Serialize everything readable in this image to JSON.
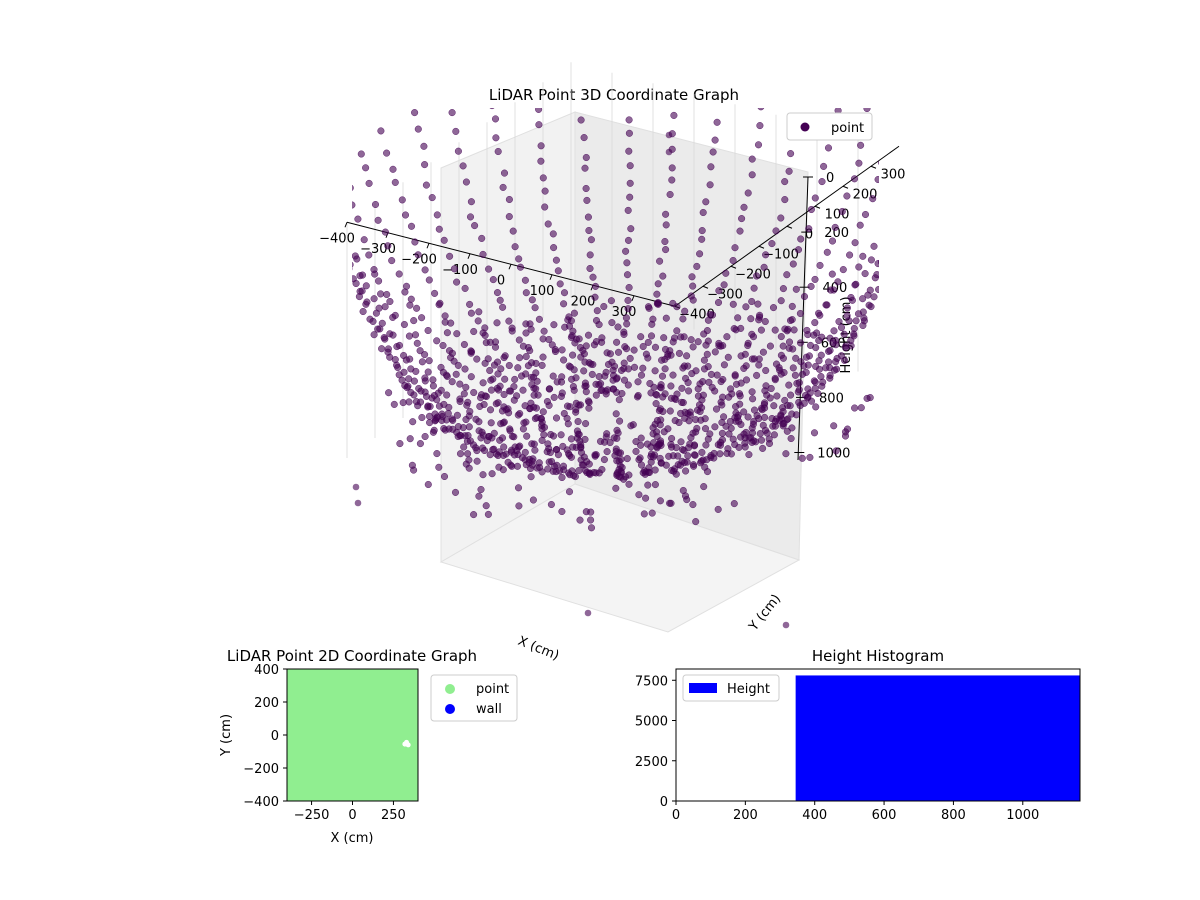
{
  "figure": {
    "background": "#ffffff"
  },
  "chart_data": [
    {
      "id": "lidar3d",
      "type": "scatter",
      "title": "LiDAR Point 3D Coordinate Graph",
      "xlabel": "X (cm)",
      "ylabel": "Y (cm)",
      "zlabel": "Height (cm)",
      "xlim": [
        -400,
        400
      ],
      "ylim": [
        -400,
        400
      ],
      "zlim": [
        1150,
        0
      ],
      "x_ticks": [
        -400,
        -300,
        -200,
        -100,
        0,
        100,
        200,
        300
      ],
      "y_ticks": [
        -400,
        -300,
        -200,
        -100,
        0,
        100,
        200,
        300
      ],
      "z_ticks": [
        0,
        200,
        400,
        600,
        800,
        1000
      ],
      "x_tick_labels": [
        "−400",
        "−300",
        "−200",
        "−100",
        "0",
        "100",
        "200",
        "300"
      ],
      "y_tick_labels": [
        "−400",
        "−300",
        "−200",
        "−100",
        "0",
        "100",
        "200",
        "300"
      ],
      "z_tick_labels": [
        "0",
        "200",
        "400",
        "600",
        "800",
        "1000"
      ],
      "legend": {
        "position": "top-right",
        "entries": [
          {
            "label": "point",
            "color": "#440154"
          }
        ]
      },
      "series": [
        {
          "name": "point",
          "color": "#440154",
          "alpha": 0.6,
          "description": "approx 38 radial scan lines, ~26 samples each, converging below the room floor center; hemispherical point cloud",
          "ray_count": 38,
          "samples_per_ray": 26,
          "radius_range": [
            60,
            560
          ],
          "z_range": [
            1150,
            0
          ]
        }
      ],
      "grid": true
    },
    {
      "id": "lidar2d",
      "type": "scatter",
      "title": "LiDAR Point 2D Coordinate Graph",
      "xlabel": "X (cm)",
      "ylabel": "Y (cm)",
      "xlim": [
        -400,
        400
      ],
      "ylim": [
        -400,
        400
      ],
      "x_ticks": [
        -250,
        0,
        250
      ],
      "y_ticks": [
        -400,
        -200,
        0,
        200,
        400
      ],
      "x_tick_labels": [
        "−250",
        "0",
        "250"
      ],
      "y_tick_labels": [
        "−400",
        "−200",
        "0",
        "200",
        "400"
      ],
      "legend": {
        "position": "outside-right",
        "entries": [
          {
            "label": "point",
            "color": "#90ee90"
          },
          {
            "label": "wall",
            "color": "#0000ff"
          }
        ]
      },
      "series": [
        {
          "name": "point",
          "color": "#90ee90",
          "coverage": "full area [-400,400] x [-400,400]"
        },
        {
          "name": "wall",
          "color": "#0000ff",
          "points": []
        }
      ],
      "gap_points": [
        {
          "x": 320,
          "y": -55
        },
        {
          "x": 340,
          "y": -60
        },
        {
          "x": 330,
          "y": -45
        }
      ],
      "grid": false
    },
    {
      "id": "heightHist",
      "type": "bar",
      "title": "Height Histogram",
      "xlim": [
        0,
        1165
      ],
      "ylim": [
        0,
        8200
      ],
      "x_ticks": [
        0,
        200,
        400,
        600,
        800,
        1000
      ],
      "y_ticks": [
        0,
        2500,
        5000,
        7500
      ],
      "x_tick_labels": [
        "0",
        "200",
        "400",
        "600",
        "800",
        "1000"
      ],
      "y_tick_labels": [
        "0",
        "2500",
        "5000",
        "7500"
      ],
      "legend": {
        "position": "top-left",
        "entries": [
          {
            "label": "Height",
            "color": "#0000ff"
          }
        ]
      },
      "series": [
        {
          "name": "Height",
          "color": "#0000ff",
          "bins": [
            {
              "x0": 345,
              "x1": 1165,
              "value": 7800
            }
          ]
        }
      ],
      "grid": false
    }
  ]
}
